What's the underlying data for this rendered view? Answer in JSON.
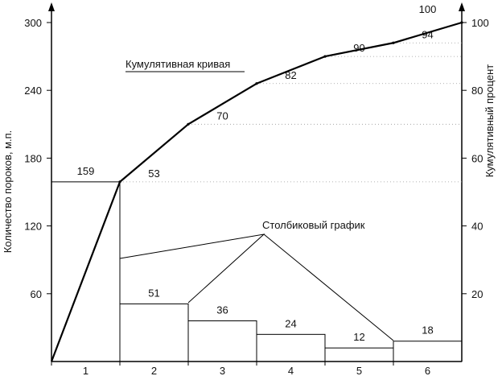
{
  "chart_data": {
    "type": "bar",
    "categories": [
      "1",
      "2",
      "3",
      "4",
      "5",
      "6"
    ],
    "values": [
      159,
      51,
      36,
      24,
      12,
      18
    ],
    "cumulative_percent": [
      53,
      70,
      82,
      90,
      94,
      100
    ],
    "ylabel": "Количество пороков, м.п.",
    "y2label": "Кумулятивный процент",
    "ylim": [
      0,
      300
    ],
    "y2lim": [
      0,
      100
    ],
    "yticks": [
      60,
      120,
      180,
      240,
      300
    ],
    "y2ticks": [
      20,
      40,
      60,
      80,
      100
    ],
    "annotations": {
      "curve": "Кумулятивная кривая",
      "bars": "Столбиковый график"
    },
    "grid": "dotted horizontal at cumulative levels"
  }
}
